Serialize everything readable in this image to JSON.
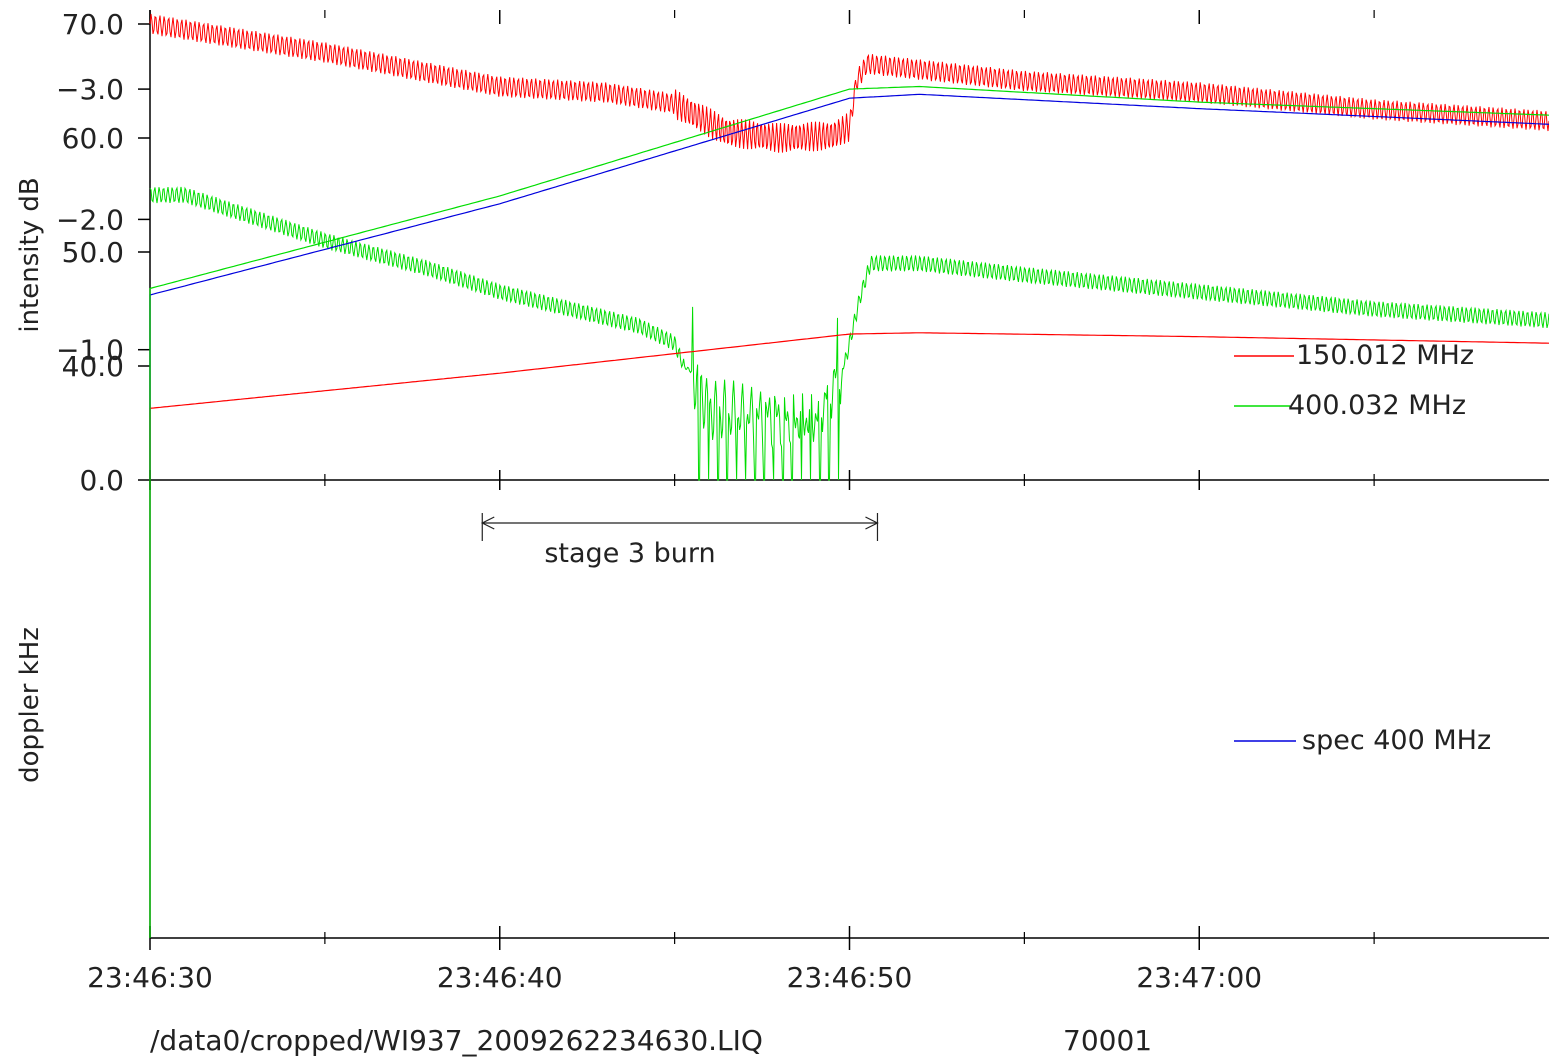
{
  "chart_data": [
    {
      "type": "line",
      "panel": "top",
      "ylabel": "intensity dB",
      "ylim": [
        0,
        70
      ],
      "y_ticks": [
        "70.0",
        "60.0",
        "50.0",
        "40.0",
        "0.0"
      ],
      "y_tick_values": [
        70,
        60,
        50,
        40,
        0
      ],
      "y_scale": "broken (0 to 35 compressed)",
      "xlim_seconds": [
        0,
        40
      ],
      "series": [
        {
          "name": "150.012 MHz",
          "color": "#ff0000",
          "x": [
            0,
            5,
            10,
            13,
            15,
            16.5,
            18,
            19.5,
            20,
            20.2,
            20.5,
            22,
            25,
            30,
            35,
            40
          ],
          "y": [
            70.0,
            67.5,
            64.5,
            64.0,
            63.0,
            60.5,
            60.0,
            60.2,
            61.0,
            65.0,
            66.5,
            66.0,
            65.0,
            64.0,
            62.5,
            61.5
          ],
          "ripple": 0.9
        },
        {
          "name": "400.032 MHz",
          "color": "#00dd00",
          "x": [
            0,
            1,
            3,
            5,
            8,
            10,
            12,
            14,
            15,
            15.5,
            16,
            17,
            18,
            19,
            19.7,
            20.3,
            20.6,
            22,
            25,
            30,
            35,
            40
          ],
          "y": [
            55.0,
            55.0,
            53.0,
            51.0,
            48.5,
            46.5,
            45.0,
            43.5,
            42.0,
            38.0,
            25.0,
            22.0,
            22.0,
            22.0,
            38.0,
            46.0,
            49.0,
            49.0,
            48.0,
            46.5,
            45.0,
            44.0
          ],
          "ripple": 0.7
        }
      ],
      "legend_position": "right"
    },
    {
      "type": "line",
      "panel": "bottom",
      "ylabel": "doppler kHz",
      "ylim": [
        -3.5,
        0
      ],
      "y_ticks": [
        "0.0",
        "−1.0",
        "−2.0",
        "−3.0"
      ],
      "y_tick_values": [
        0,
        -1,
        -2,
        -3
      ],
      "x_tick_labels": [
        "23:46:30",
        "23:46:40",
        "23:46:50",
        "23:47:00"
      ],
      "x_tick_values": [
        0,
        10,
        20,
        30
      ],
      "x_minor_tick_values": [
        5,
        15,
        25,
        35
      ],
      "xlim_seconds": [
        0,
        40
      ],
      "series": [
        {
          "color": "#ff0000",
          "x": [
            0,
            10,
            20,
            22,
            30,
            40
          ],
          "y": [
            -0.55,
            -0.82,
            -1.12,
            -1.13,
            -1.1,
            -1.05
          ]
        },
        {
          "name": "spec 400 MHz",
          "color": "#0000dd",
          "x": [
            0,
            10,
            20,
            22,
            30,
            40
          ],
          "y": [
            -1.42,
            -2.12,
            -2.93,
            -2.96,
            -2.85,
            -2.73
          ]
        },
        {
          "color": "#00dd00",
          "x": [
            0,
            10,
            20,
            22,
            30,
            40
          ],
          "y": [
            -1.47,
            -2.18,
            -3.0,
            -3.02,
            -2.9,
            -2.8
          ]
        }
      ],
      "annotation": {
        "text": "stage 3 burn",
        "x_start": 9.5,
        "x_end": 20.8
      },
      "legend_position": "right"
    }
  ],
  "footer": {
    "path": "/data0/cropped/WI937_2009262234630.LIQ",
    "code": "70001"
  }
}
